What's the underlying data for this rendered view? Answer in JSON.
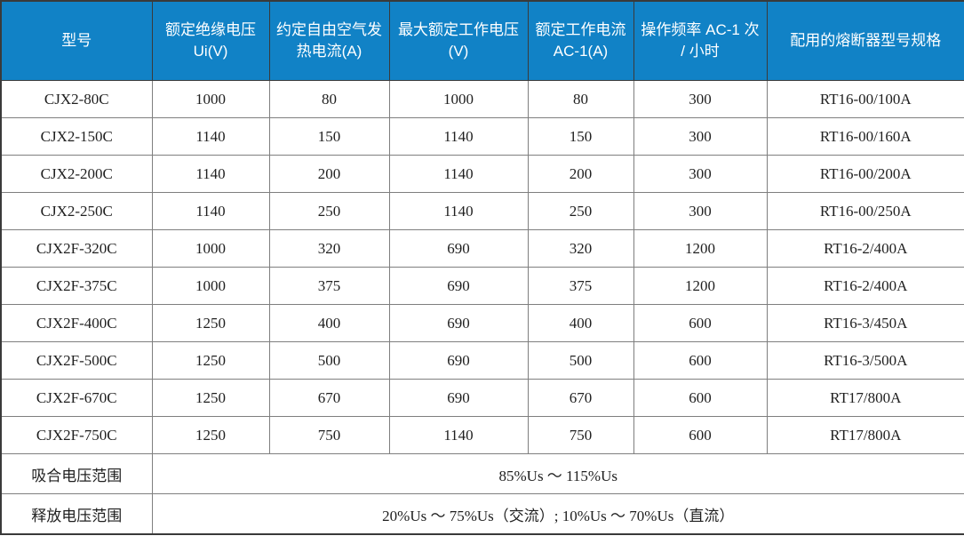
{
  "table": {
    "headers": [
      "型号",
      "额定绝缘电压 Ui(V)",
      "约定自由空气发热电流(A)",
      "最大额定工作电压(V)",
      "额定工作电流 AC-1(A)",
      "操作频率 AC-1 次 / 小时",
      "配用的熔断器型号规格"
    ],
    "rows": [
      [
        "CJX2-80C",
        "1000",
        "80",
        "1000",
        "80",
        "300",
        "RT16-00/100A"
      ],
      [
        "CJX2-150C",
        "1140",
        "150",
        "1140",
        "150",
        "300",
        "RT16-00/160A"
      ],
      [
        "CJX2-200C",
        "1140",
        "200",
        "1140",
        "200",
        "300",
        "RT16-00/200A"
      ],
      [
        "CJX2-250C",
        "1140",
        "250",
        "1140",
        "250",
        "300",
        "RT16-00/250A"
      ],
      [
        "CJX2F-320C",
        "1000",
        "320",
        "690",
        "320",
        "1200",
        "RT16-2/400A"
      ],
      [
        "CJX2F-375C",
        "1000",
        "375",
        "690",
        "375",
        "1200",
        "RT16-2/400A"
      ],
      [
        "CJX2F-400C",
        "1250",
        "400",
        "690",
        "400",
        "600",
        "RT16-3/450A"
      ],
      [
        "CJX2F-500C",
        "1250",
        "500",
        "690",
        "500",
        "600",
        "RT16-3/500A"
      ],
      [
        "CJX2F-670C",
        "1250",
        "670",
        "690",
        "670",
        "600",
        "RT17/800A"
      ],
      [
        "CJX2F-750C",
        "1250",
        "750",
        "1140",
        "750",
        "600",
        "RT17/800A"
      ]
    ],
    "footer_rows": [
      {
        "label": "吸合电压范围",
        "value": "85%Us ～ 115%Us"
      },
      {
        "label": "释放电压范围",
        "value": "20%Us ～ 75%Us（交流）; 10%Us ～ 70%Us（直流）"
      }
    ],
    "colors": {
      "header_bg": "#1182C6",
      "header_text": "#FFFFFF",
      "body_text": "#1F1F1F",
      "grid_line": "#7F7F7F",
      "outer_border": "#3A3A3A"
    }
  }
}
